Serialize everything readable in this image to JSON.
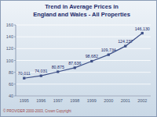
{
  "chart_data": {
    "type": "line",
    "title": "Trend in Average Prices in",
    "subtitle": "England and Wales - All Properties",
    "categories": [
      "1995",
      "1996",
      "1997",
      "1998",
      "1999",
      "2000",
      "2001",
      "2002"
    ],
    "values": [
      70.011,
      74.031,
      80.875,
      87.636,
      98.682,
      109.734,
      124.237,
      146.13
    ],
    "value_labels": [
      "70,011",
      "74,031",
      "80,875",
      "87,636",
      "98,682",
      "109,734",
      "124,237",
      "146,130"
    ],
    "color": "#3d4f86",
    "marker": "square",
    "data_labels": true,
    "ylim": [
      40,
      160
    ],
    "yticks": [
      40,
      60,
      80,
      100,
      120,
      140,
      160
    ],
    "grid": true,
    "annotations": [
      "© PROVIDER  2000-2003, Crown Copyright"
    ]
  }
}
